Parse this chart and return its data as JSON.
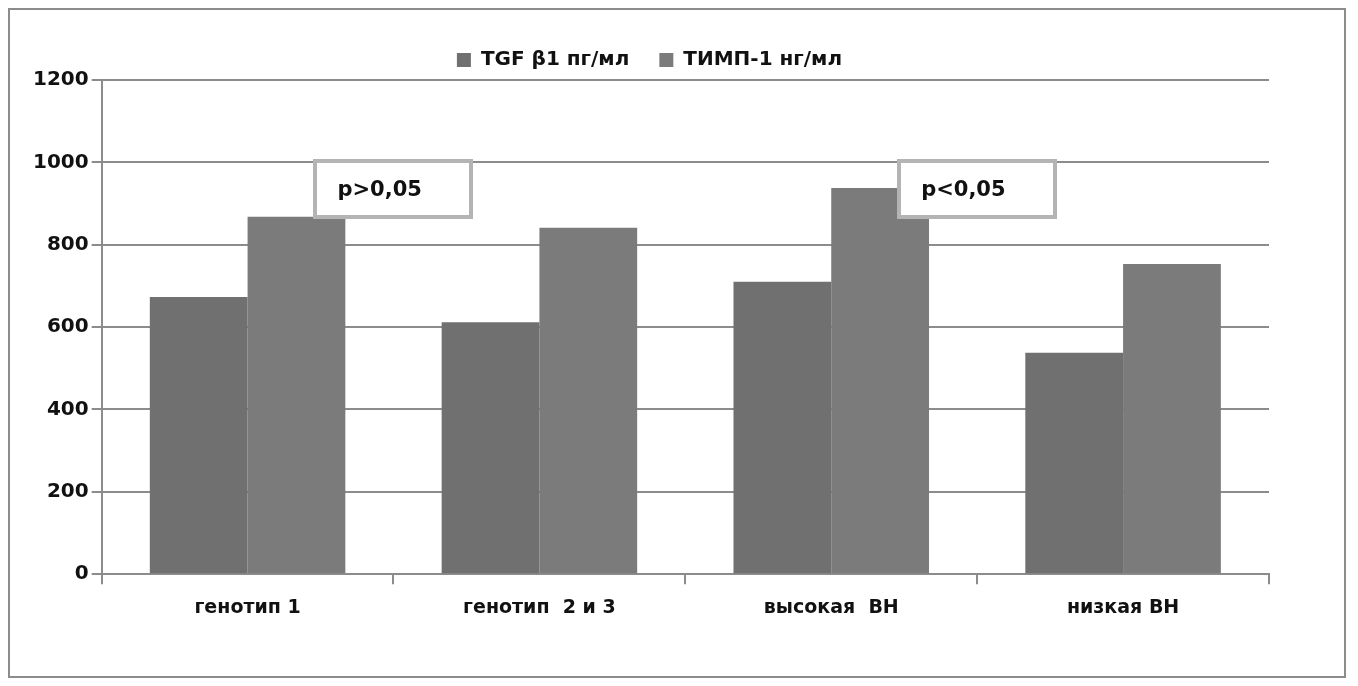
{
  "chart_data": {
    "type": "bar",
    "categories": [
      "генотип 1",
      "генотип  2 и 3",
      "высокая  ВН",
      "низкая ВН"
    ],
    "series": [
      {
        "name": "TGF β1 пг/мл",
        "color": "#707070",
        "values": [
          673,
          612,
          710,
          538
        ]
      },
      {
        "name": "ТИМП-1 нг/мл",
        "color": "#7b7b7b",
        "values": [
          868,
          841,
          938,
          753
        ]
      }
    ],
    "ylim": [
      0,
      1200
    ],
    "yticks": [
      0,
      200,
      400,
      600,
      800,
      1000,
      1200
    ],
    "grid": "y",
    "legend": "top",
    "annotations": [
      "p>0,05",
      "p<0,05"
    ]
  }
}
